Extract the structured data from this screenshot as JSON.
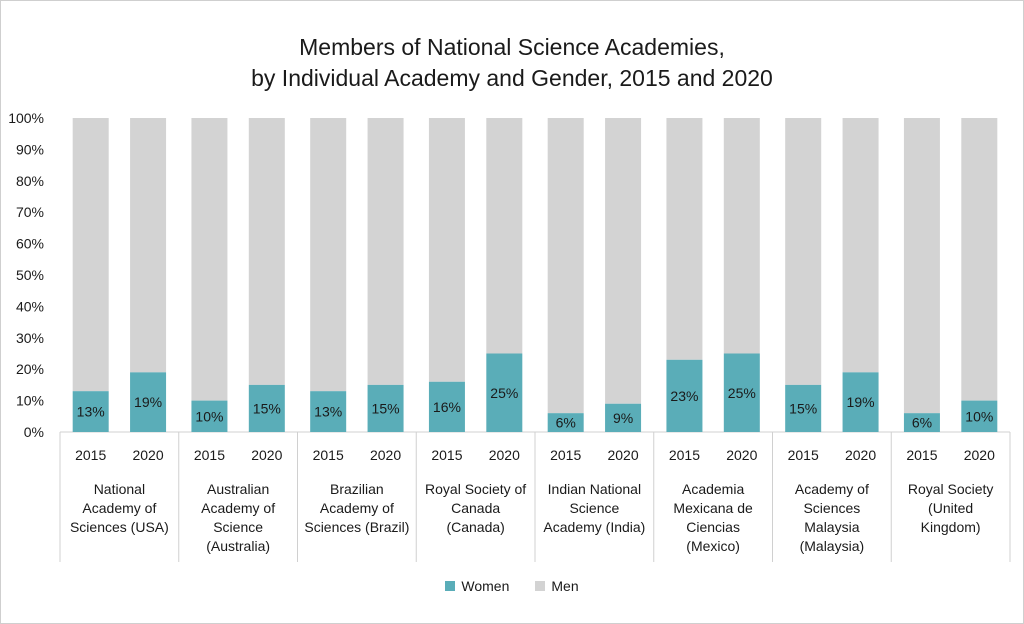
{
  "chart_data": {
    "type": "bar",
    "stacked": true,
    "percent": true,
    "title": [
      "Members of National Science Academies,",
      "by Individual Academy and Gender, 2015 and 2020"
    ],
    "yticks": [
      "0%",
      "10%",
      "20%",
      "30%",
      "40%",
      "50%",
      "60%",
      "70%",
      "80%",
      "90%",
      "100%"
    ],
    "ylim": [
      0,
      100
    ],
    "groups": [
      {
        "label": [
          "National",
          "Academy of",
          "Sciences (USA)"
        ],
        "years": [
          "2015",
          "2020"
        ],
        "women": [
          13,
          19
        ],
        "labels": [
          "13%",
          "19%"
        ]
      },
      {
        "label": [
          "Australian",
          "Academy of",
          "Science",
          "(Australia)"
        ],
        "years": [
          "2015",
          "2020"
        ],
        "women": [
          10,
          15
        ],
        "labels": [
          "10%",
          "15%"
        ]
      },
      {
        "label": [
          "Brazilian",
          "Academy of",
          "Sciences (Brazil)"
        ],
        "years": [
          "2015",
          "2020"
        ],
        "women": [
          13,
          15
        ],
        "labels": [
          "13%",
          "15%"
        ]
      },
      {
        "label": [
          "Royal Society of",
          "Canada",
          "(Canada)"
        ],
        "years": [
          "2015",
          "2020"
        ],
        "women": [
          16,
          25
        ],
        "labels": [
          "16%",
          "25%"
        ]
      },
      {
        "label": [
          "Indian National",
          "Science",
          "Academy (India)"
        ],
        "years": [
          "2015",
          "2020"
        ],
        "women": [
          6,
          9
        ],
        "labels": [
          "6%",
          "9%"
        ]
      },
      {
        "label": [
          "Academia",
          "Mexicana de",
          "Ciencias",
          "(Mexico)"
        ],
        "years": [
          "2015",
          "2020"
        ],
        "women": [
          23,
          25
        ],
        "labels": [
          "23%",
          "25%"
        ]
      },
      {
        "label": [
          "Academy of",
          "Sciences",
          "Malaysia",
          "(Malaysia)"
        ],
        "years": [
          "2015",
          "2020"
        ],
        "women": [
          15,
          19
        ],
        "labels": [
          "15%",
          "19%"
        ]
      },
      {
        "label": [
          "Royal Society",
          "(United",
          "Kingdom)"
        ],
        "years": [
          "2015",
          "2020"
        ],
        "women": [
          6,
          10
        ],
        "labels": [
          "6%",
          "10%"
        ]
      }
    ],
    "series": [
      {
        "name": "Women",
        "color": "#5aadb8"
      },
      {
        "name": "Men",
        "color": "#d3d3d3"
      }
    ],
    "legend_position": "bottom"
  }
}
